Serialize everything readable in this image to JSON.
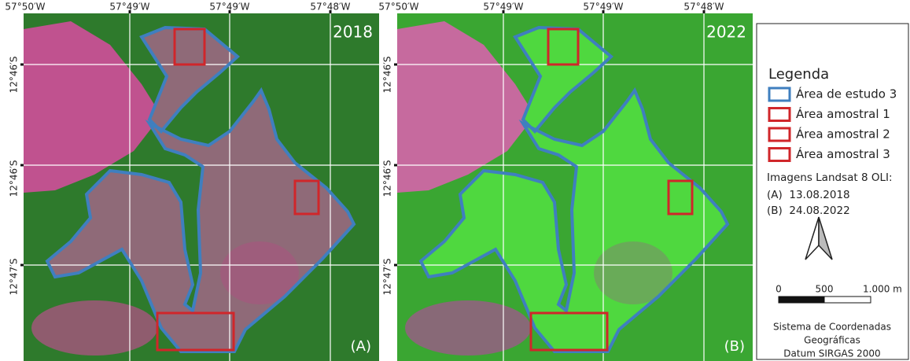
{
  "panels": [
    {
      "year": "2018",
      "label": "(A)"
    },
    {
      "year": "2022",
      "label": "(B)"
    }
  ],
  "longitude_labels": [
    "57°50′W",
    "57°49′W",
    "57°49′W",
    "57°48′W"
  ],
  "latitude_labels": [
    "12°46′S",
    "12°46′S",
    "12°47′S"
  ],
  "legend": {
    "title": "Legenda",
    "items": [
      {
        "label": "Área de estudo 3",
        "color": "#3f7fbf"
      },
      {
        "label": "Área amostral 1",
        "color": "#d0262a"
      },
      {
        "label": "Área amostral 2",
        "color": "#d0262a"
      },
      {
        "label": "Área amostral 3",
        "color": "#d0262a"
      }
    ],
    "imagery": {
      "title": "Imagens Landsat 8 OLI:",
      "dates": [
        "(A)  13.08.2018",
        "(B)  24.08.2022"
      ]
    },
    "scale": [
      "0",
      "500",
      "1.000 m"
    ],
    "crs": [
      "Sistema de Coordenadas",
      "Geográficas",
      "Datum SIRGAS 2000"
    ]
  }
}
